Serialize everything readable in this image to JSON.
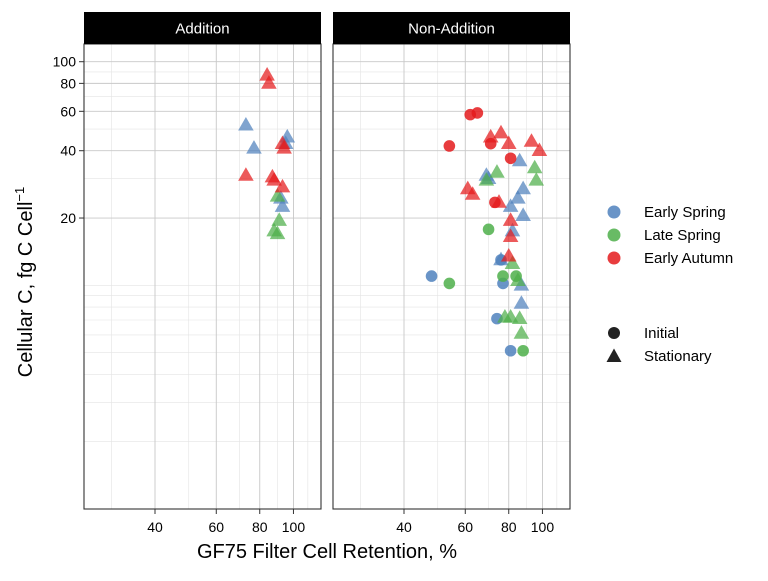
{
  "chart_data": {
    "type": "scatter",
    "xlabel": "GF75 Filter Cell Retention, %",
    "ylabel_main": "Cellular C, fg C Cell",
    "ylabel_sup": "−1",
    "x_scale": "log",
    "y_scale": "log",
    "xlim": [
      25,
      120
    ],
    "ylim": [
      1,
      120
    ],
    "x_ticks": [
      40,
      60,
      80,
      100
    ],
    "y_ticks": [
      20,
      40,
      60,
      80,
      100
    ],
    "grid": true,
    "panels": [
      "Addition",
      "Non-Addition"
    ],
    "legend_position": "right",
    "season_legend": [
      {
        "key": "early_spring",
        "label": "Early Spring",
        "color": "#4f81bd"
      },
      {
        "key": "late_spring",
        "label": "Late Spring",
        "color": "#4daf4a"
      },
      {
        "key": "early_autumn",
        "label": "Early Autumn",
        "color": "#e41a1c"
      }
    ],
    "phase_legend": [
      {
        "key": "initial",
        "label": "Initial",
        "shape": "circle"
      },
      {
        "key": "stationary",
        "label": "Stationary",
        "shape": "triangle"
      }
    ],
    "points": {
      "Addition": [
        {
          "x": 73,
          "y": 52,
          "season": "early_spring",
          "phase": "stationary"
        },
        {
          "x": 77,
          "y": 41,
          "season": "early_spring",
          "phase": "stationary"
        },
        {
          "x": 96,
          "y": 46,
          "season": "early_spring",
          "phase": "stationary"
        },
        {
          "x": 95,
          "y": 43,
          "season": "early_spring",
          "phase": "stationary"
        },
        {
          "x": 92,
          "y": 24.5,
          "season": "early_spring",
          "phase": "stationary"
        },
        {
          "x": 93,
          "y": 22.5,
          "season": "early_spring",
          "phase": "stationary"
        },
        {
          "x": 91,
          "y": 19.5,
          "season": "late_spring",
          "phase": "stationary"
        },
        {
          "x": 90,
          "y": 25,
          "season": "late_spring",
          "phase": "stationary"
        },
        {
          "x": 88,
          "y": 17.5,
          "season": "late_spring",
          "phase": "stationary"
        },
        {
          "x": 90,
          "y": 17,
          "season": "late_spring",
          "phase": "stationary"
        },
        {
          "x": 84,
          "y": 87,
          "season": "early_autumn",
          "phase": "stationary"
        },
        {
          "x": 85,
          "y": 80,
          "season": "early_autumn",
          "phase": "stationary"
        },
        {
          "x": 93,
          "y": 43,
          "season": "early_autumn",
          "phase": "stationary"
        },
        {
          "x": 94,
          "y": 41,
          "season": "early_autumn",
          "phase": "stationary"
        },
        {
          "x": 73,
          "y": 31,
          "season": "early_autumn",
          "phase": "stationary"
        },
        {
          "x": 87,
          "y": 30.5,
          "season": "early_autumn",
          "phase": "stationary"
        },
        {
          "x": 88,
          "y": 29.5,
          "season": "early_autumn",
          "phase": "stationary"
        },
        {
          "x": 93,
          "y": 27.5,
          "season": "early_autumn",
          "phase": "stationary"
        }
      ],
      "Non-Addition": [
        {
          "x": 48,
          "y": 11,
          "season": "early_spring",
          "phase": "initial"
        },
        {
          "x": 76,
          "y": 13,
          "season": "early_spring",
          "phase": "initial"
        },
        {
          "x": 77,
          "y": 10.2,
          "season": "early_spring",
          "phase": "initial"
        },
        {
          "x": 74,
          "y": 7.1,
          "season": "early_spring",
          "phase": "initial"
        },
        {
          "x": 81,
          "y": 5.1,
          "season": "early_spring",
          "phase": "initial"
        },
        {
          "x": 69,
          "y": 31,
          "season": "early_spring",
          "phase": "stationary"
        },
        {
          "x": 70,
          "y": 30,
          "season": "early_spring",
          "phase": "stationary"
        },
        {
          "x": 86,
          "y": 36,
          "season": "early_spring",
          "phase": "stationary"
        },
        {
          "x": 85,
          "y": 24.5,
          "season": "early_spring",
          "phase": "stationary"
        },
        {
          "x": 81,
          "y": 22.5,
          "season": "early_spring",
          "phase": "stationary"
        },
        {
          "x": 88,
          "y": 27,
          "season": "early_spring",
          "phase": "stationary"
        },
        {
          "x": 88,
          "y": 20.5,
          "season": "early_spring",
          "phase": "stationary"
        },
        {
          "x": 82,
          "y": 17.5,
          "season": "early_spring",
          "phase": "stationary"
        },
        {
          "x": 76,
          "y": 13,
          "season": "early_spring",
          "phase": "stationary"
        },
        {
          "x": 87,
          "y": 10,
          "season": "early_spring",
          "phase": "stationary"
        },
        {
          "x": 87,
          "y": 8.3,
          "season": "early_spring",
          "phase": "stationary"
        },
        {
          "x": 54,
          "y": 10.2,
          "season": "late_spring",
          "phase": "initial"
        },
        {
          "x": 70,
          "y": 17.8,
          "season": "late_spring",
          "phase": "initial"
        },
        {
          "x": 77,
          "y": 11,
          "season": "late_spring",
          "phase": "initial"
        },
        {
          "x": 84,
          "y": 11,
          "season": "late_spring",
          "phase": "initial"
        },
        {
          "x": 88,
          "y": 5.1,
          "season": "late_spring",
          "phase": "initial"
        },
        {
          "x": 69,
          "y": 29.5,
          "season": "late_spring",
          "phase": "stationary"
        },
        {
          "x": 74,
          "y": 32,
          "season": "late_spring",
          "phase": "stationary"
        },
        {
          "x": 95,
          "y": 33.5,
          "season": "late_spring",
          "phase": "stationary"
        },
        {
          "x": 96,
          "y": 29.5,
          "season": "late_spring",
          "phase": "stationary"
        },
        {
          "x": 82,
          "y": 12.5,
          "season": "late_spring",
          "phase": "stationary"
        },
        {
          "x": 85,
          "y": 10.5,
          "season": "late_spring",
          "phase": "stationary"
        },
        {
          "x": 78,
          "y": 7.2,
          "season": "late_spring",
          "phase": "stationary"
        },
        {
          "x": 81,
          "y": 7.2,
          "season": "late_spring",
          "phase": "stationary"
        },
        {
          "x": 86,
          "y": 7.1,
          "season": "late_spring",
          "phase": "stationary"
        },
        {
          "x": 87,
          "y": 6.1,
          "season": "late_spring",
          "phase": "stationary"
        },
        {
          "x": 62,
          "y": 58,
          "season": "early_autumn",
          "phase": "initial"
        },
        {
          "x": 65,
          "y": 59,
          "season": "early_autumn",
          "phase": "initial"
        },
        {
          "x": 54,
          "y": 42,
          "season": "early_autumn",
          "phase": "initial"
        },
        {
          "x": 71,
          "y": 43,
          "season": "early_autumn",
          "phase": "initial"
        },
        {
          "x": 81,
          "y": 37,
          "season": "early_autumn",
          "phase": "initial"
        },
        {
          "x": 73,
          "y": 23.5,
          "season": "early_autumn",
          "phase": "initial"
        },
        {
          "x": 71,
          "y": 46,
          "season": "early_autumn",
          "phase": "stationary"
        },
        {
          "x": 76,
          "y": 48,
          "season": "early_autumn",
          "phase": "stationary"
        },
        {
          "x": 80,
          "y": 43,
          "season": "early_autumn",
          "phase": "stationary"
        },
        {
          "x": 93,
          "y": 44,
          "season": "early_autumn",
          "phase": "stationary"
        },
        {
          "x": 98,
          "y": 40,
          "season": "early_autumn",
          "phase": "stationary"
        },
        {
          "x": 61,
          "y": 27,
          "season": "early_autumn",
          "phase": "stationary"
        },
        {
          "x": 63,
          "y": 25.5,
          "season": "early_autumn",
          "phase": "stationary"
        },
        {
          "x": 75,
          "y": 23.5,
          "season": "early_autumn",
          "phase": "stationary"
        },
        {
          "x": 81,
          "y": 19.5,
          "season": "early_autumn",
          "phase": "stationary"
        },
        {
          "x": 81,
          "y": 16.5,
          "season": "early_autumn",
          "phase": "stationary"
        },
        {
          "x": 80,
          "y": 13.5,
          "season": "early_autumn",
          "phase": "stationary"
        }
      ]
    }
  }
}
